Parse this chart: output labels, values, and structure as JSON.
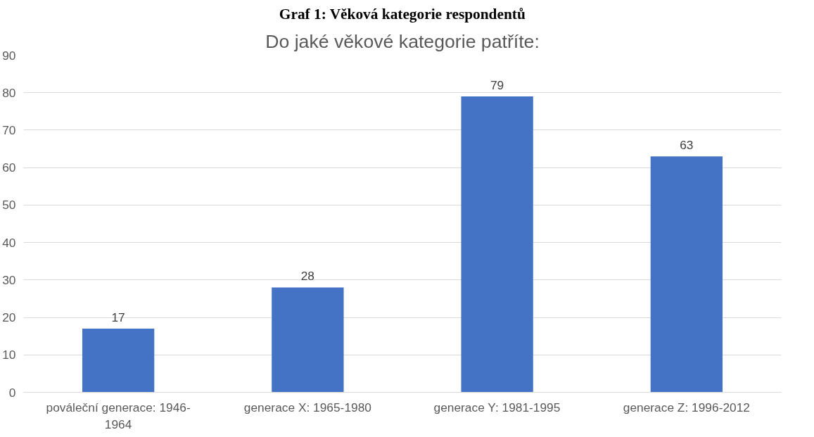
{
  "chart_data": {
    "type": "bar",
    "title": "Graf 1: Věková kategorie respondentů",
    "subtitle": "Do jaké věkové kategorie patříte:",
    "categories": [
      "pováleční generace: 1946-1964",
      "generace X: 1965-1980",
      "generace Y: 1981-1995",
      "generace Z: 1996-2012"
    ],
    "values": [
      17,
      28,
      79,
      63
    ],
    "color": "#4472c4",
    "data_labels": true,
    "ylim": [
      0,
      90
    ],
    "yticks": [
      0,
      10,
      20,
      30,
      40,
      50,
      60,
      70,
      80,
      90
    ],
    "grid": "y"
  }
}
